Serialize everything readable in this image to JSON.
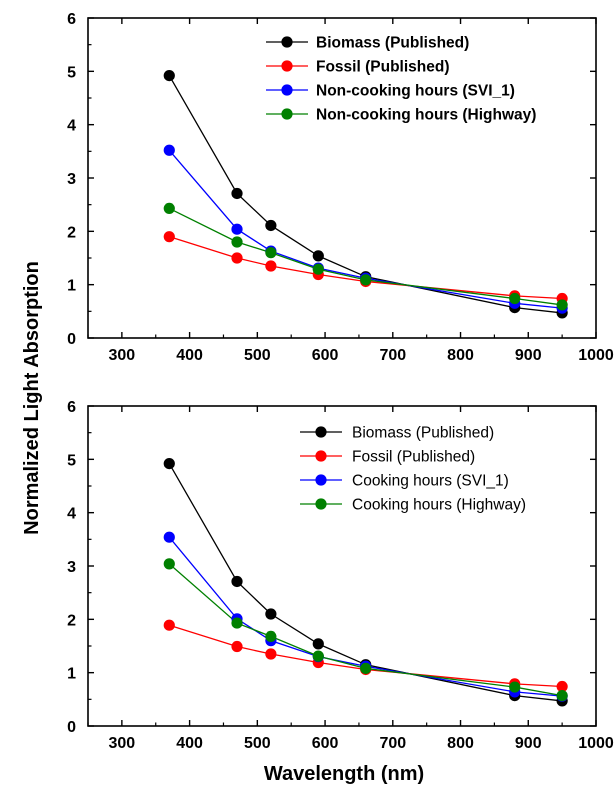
{
  "chart_data": [
    {
      "type": "line",
      "panel": "top",
      "x": [
        370,
        470,
        520,
        590,
        660,
        880,
        950
      ],
      "xlim": [
        250,
        1000
      ],
      "ylim": [
        0,
        6
      ],
      "xticks": [
        300,
        400,
        500,
        600,
        700,
        800,
        900,
        1000
      ],
      "yticks": [
        0,
        1,
        2,
        3,
        4,
        5,
        6
      ],
      "legend_position": "top-right",
      "legend_bold": true,
      "grid": false,
      "series": [
        {
          "name": "Biomass (Published)",
          "color": "#000000",
          "values": [
            4.92,
            2.71,
            2.11,
            1.54,
            1.15,
            0.57,
            0.47
          ]
        },
        {
          "name": "Fossil (Published)",
          "color": "#ff0000",
          "values": [
            1.9,
            1.5,
            1.35,
            1.19,
            1.06,
            0.79,
            0.74
          ]
        },
        {
          "name": "Non-cooking hours (SVI_1)",
          "color": "#0000ff",
          "values": [
            3.52,
            2.04,
            1.63,
            1.31,
            1.12,
            0.65,
            0.56
          ]
        },
        {
          "name": "Non-cooking hours (Highway)",
          "color": "#008000",
          "values": [
            2.43,
            1.8,
            1.6,
            1.29,
            1.09,
            0.74,
            0.62
          ]
        }
      ]
    },
    {
      "type": "line",
      "panel": "bottom",
      "x": [
        370,
        470,
        520,
        590,
        660,
        880,
        950
      ],
      "xlim": [
        250,
        1000
      ],
      "ylim": [
        0,
        6
      ],
      "xticks": [
        300,
        400,
        500,
        600,
        700,
        800,
        900,
        1000
      ],
      "yticks": [
        0,
        1,
        2,
        3,
        4,
        5,
        6
      ],
      "legend_position": "top-right",
      "legend_bold": false,
      "grid": false,
      "series": [
        {
          "name": "Biomass (Published)",
          "color": "#000000",
          "values": [
            4.92,
            2.71,
            2.1,
            1.54,
            1.15,
            0.57,
            0.47
          ]
        },
        {
          "name": "Fossil (Published)",
          "color": "#ff0000",
          "values": [
            1.89,
            1.49,
            1.35,
            1.19,
            1.06,
            0.79,
            0.74
          ]
        },
        {
          "name": "Cooking hours (SVI_1)",
          "color": "#0000ff",
          "values": [
            3.54,
            2.01,
            1.6,
            1.3,
            1.12,
            0.64,
            0.56
          ]
        },
        {
          "name": "Cooking hours (Highway)",
          "color": "#008000",
          "values": [
            3.04,
            1.93,
            1.68,
            1.31,
            1.08,
            0.73,
            0.57
          ]
        }
      ]
    }
  ],
  "shared": {
    "ylabel": "Normalized Light Absorption",
    "xlabel": "Wavelength (nm)"
  }
}
